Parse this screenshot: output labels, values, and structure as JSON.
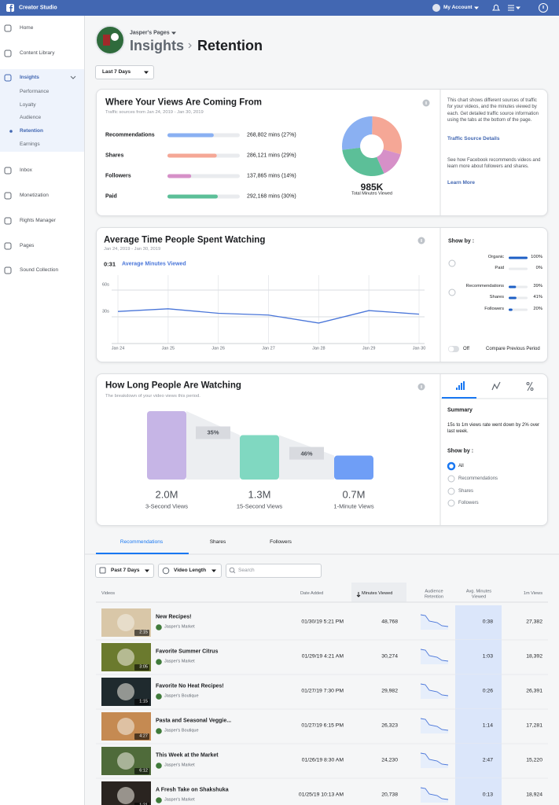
{
  "topbar": {
    "brand": "Creator Studio",
    "account": "My Account"
  },
  "sidebar": {
    "top": [
      "Home",
      "Content Library"
    ],
    "section": "Insights",
    "sub": [
      "Performance",
      "Loyalty",
      "Audience",
      "Retention",
      "Earnings"
    ],
    "bottom": [
      "Inbox",
      "Monetization",
      "Rights Manager",
      "Pages",
      "Sound Collection"
    ]
  },
  "header": {
    "page": "Jasper's Pages",
    "section": "Insights",
    "title": "Retention"
  },
  "date_range": "Last 7 Days",
  "traffic": {
    "type": "bar",
    "title": "Where Your Views Are Coming From",
    "subtitle": "Traffic sources from Jan 24, 2019 - Jan 30, 2019",
    "categories": [
      "Recommendations",
      "Shares",
      "Followers",
      "Paid"
    ],
    "values": [
      268802,
      286121,
      137865,
      292168
    ],
    "value_labels": [
      "268,802 mins (27%)",
      "286,121 mins (29%)",
      "137,865 mins (14%)",
      "292,168 mins (30%)"
    ],
    "colors": [
      "#8ab0f2",
      "#f5a796",
      "#d690c8",
      "#5cbf98"
    ],
    "total": "985K",
    "total_label": "Total Minutes Viewed",
    "info": "This chart shows different sources of traffic for your videos, and the minutes viewed by each. Get detailed traffic source information using the tabs at the bottom of the page.",
    "link": "Traffic Source Details",
    "info2": "See how Facebook recommends videos and learn more about followers and shares.",
    "link2": "Learn More"
  },
  "watch_time": {
    "type": "line",
    "title": "Average Time People Spent Watching",
    "subtitle": "Jan 24, 2019 - Jan 30, 2019",
    "summary_value": "0:31",
    "series_name": "Average Minutes Viewed",
    "color": "#4a76d9",
    "categories": [
      "Jan 24",
      "Jan 25",
      "Jan 26",
      "Jan 27",
      "Jan 28",
      "Jan 29",
      "Jan 30"
    ],
    "values": [
      36,
      39,
      34,
      32,
      23,
      37,
      33
    ],
    "ylim": [
      0,
      75
    ],
    "yticks": [
      {
        "value": 30,
        "label": "30s"
      },
      {
        "value": 60,
        "label": "60s"
      }
    ],
    "grid": true,
    "show_by": "Show by :",
    "breakdown": [
      {
        "name": "Organic",
        "value": 100,
        "label": "100%"
      },
      {
        "name": "Paid",
        "value": 0,
        "label": "0%"
      },
      {
        "name": "Recommendations",
        "value": 39,
        "label": "39%"
      },
      {
        "name": "Shares",
        "value": 41,
        "label": "41%"
      },
      {
        "name": "Followers",
        "value": 20,
        "label": "20%"
      }
    ],
    "toggle": "Off",
    "compare": "Compare Previous Period"
  },
  "retention": {
    "type": "bar",
    "title": "How Long People Are Watching",
    "subtitle": "The breakdown of your video views this period.",
    "categories": [
      "3-Second Views",
      "15-Second Views",
      "1-Minute Views"
    ],
    "values": [
      2000000,
      1300000,
      700000
    ],
    "value_labels": [
      "2.0M",
      "1.3M",
      "0.7M"
    ],
    "colors": [
      "#c6b5e6",
      "#80d8c1",
      "#6f9ef6"
    ],
    "dropoff_labels": [
      "35%",
      "46%"
    ],
    "summary_title": "Summary",
    "summary": "15s to 1m views rate went down by 2% over last week.",
    "show_by": "Show by :",
    "options": [
      "All",
      "Recommendations",
      "Shares",
      "Followers"
    ]
  },
  "tabs": [
    "Recommendations",
    "Shares",
    "Followers"
  ],
  "filters": {
    "period": "Past 7 Days",
    "length": "Video Length",
    "search": "Search"
  },
  "table": {
    "columns": [
      "Videos",
      "Date Added",
      "Minutes Viewed",
      "Audience Retention",
      "Avg. Minutes Viewed",
      "1m Views"
    ],
    "rows": [
      {
        "title": "New Recipes!",
        "page": "Jasper's Market",
        "duration": "2:15",
        "date": "01/30/19 5:21 PM",
        "minutes": "48,768",
        "avg": "0:38",
        "views": "27,382"
      },
      {
        "title": "Favorite Summer Citrus",
        "page": "Jasper's Market",
        "duration": "3:05",
        "date": "01/29/19 4:21 AM",
        "minutes": "30,274",
        "avg": "1:03",
        "views": "18,392"
      },
      {
        "title": "Favorite No Heat Recipes!",
        "page": "Jasper's Boutique",
        "duration": "1:15",
        "date": "01/27/19 7:30 PM",
        "minutes": "29,982",
        "avg": "0:26",
        "views": "26,391"
      },
      {
        "title": "Pasta and Seasonal Veggie...",
        "page": "Jasper's Boutique",
        "duration": "4:27",
        "date": "01/27/19 6:15 PM",
        "minutes": "26,323",
        "avg": "1:14",
        "views": "17,281"
      },
      {
        "title": "This Week at the Market",
        "page": "Jasper's Market",
        "duration": "6:12",
        "date": "01/26/19 8:30 AM",
        "minutes": "24,230",
        "avg": "2:47",
        "views": "15,220"
      },
      {
        "title": "A Fresh Take on Shakshuka",
        "page": "Jasper's Market",
        "duration": "1:21",
        "date": "01/25/19 10:13 AM",
        "minutes": "20,738",
        "avg": "0:13",
        "views": "18,924"
      }
    ]
  }
}
